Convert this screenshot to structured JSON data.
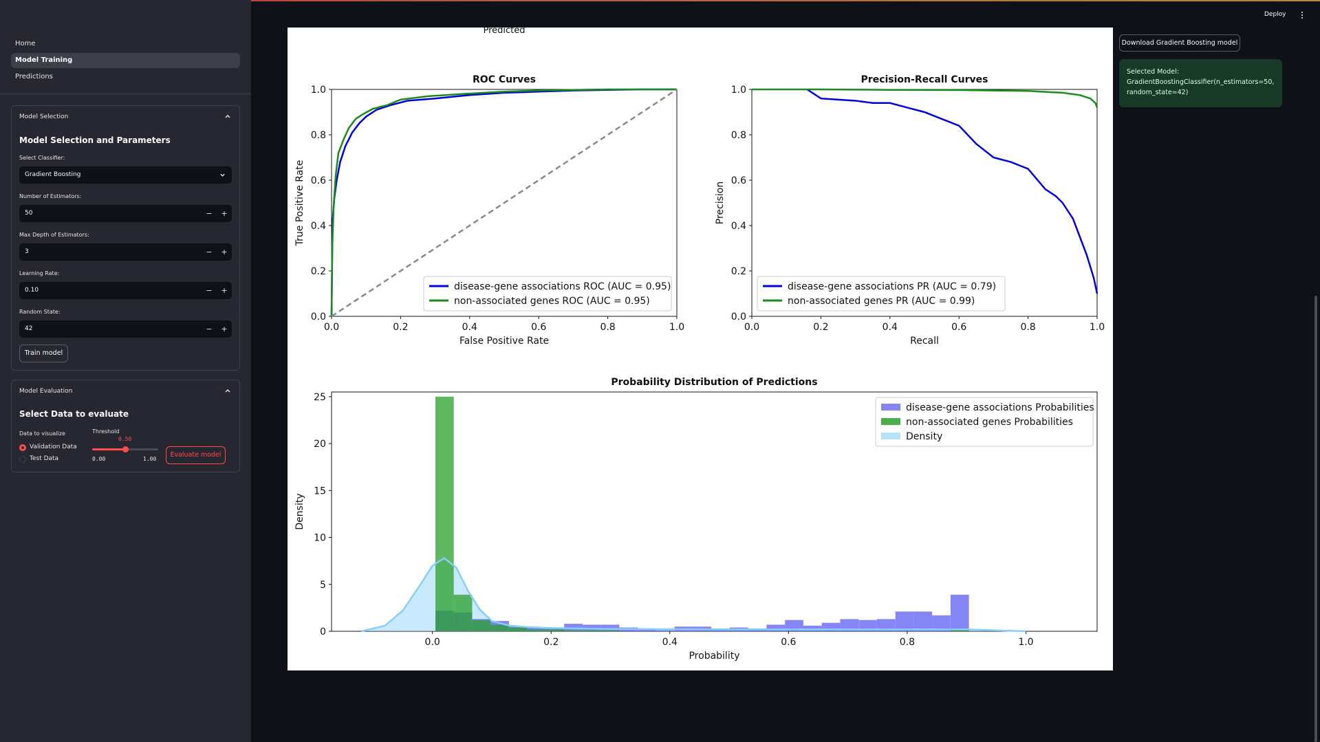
{
  "sidebar": {
    "nav": [
      "Home",
      "Model Training",
      "Predictions"
    ],
    "active_nav": "Model Training",
    "model_selection": {
      "title": "Model Selection",
      "heading": "Model Selection and Parameters",
      "classifier_label": "Select Classifier:",
      "classifier_value": "Gradient Boosting",
      "fields": [
        {
          "label": "Number of Estimators:",
          "value": "50"
        },
        {
          "label": "Max Depth of Estimators:",
          "value": "3"
        },
        {
          "label": "Learning Rate:",
          "value": "0.10"
        },
        {
          "label": "Random State:",
          "value": "42"
        }
      ],
      "stepper_minus": "−",
      "stepper_plus": "+",
      "train_button": "Train model"
    },
    "model_evaluation": {
      "title": "Model Evaluation",
      "heading": "Select Data to evaluate",
      "data_label": "Data to visualize",
      "options": [
        "Validation Data",
        "Test Data"
      ],
      "selected_option": "Validation Data",
      "threshold_label": "Threshold",
      "threshold_value": "0.50",
      "threshold_fraction": 0.5,
      "threshold_min": "0.00",
      "threshold_max": "1.00",
      "evaluate_button": "Evaluate model"
    }
  },
  "header": {
    "deploy": "Deploy"
  },
  "right_panel": {
    "download_button": "Download Gradient Boosting model",
    "selected_model_label": "Selected Model:",
    "selected_model_value": "GradientBoostingClassifier(n_estimators=50, random_state=42)"
  },
  "colors": {
    "accent": "#ff4b4b",
    "success_bg": "#173928",
    "blue_series": "#0000dd",
    "green_series": "#1a8a1a",
    "density": "#87cefa"
  },
  "figure": {
    "cut_label": "Predicted"
  },
  "chart_data": [
    {
      "type": "line",
      "title": "ROC Curves",
      "xlabel": "False Positive Rate",
      "ylabel": "True Positive Rate",
      "xlim": [
        0,
        1
      ],
      "ylim": [
        0,
        1
      ],
      "xticks": [
        "0.0",
        "0.2",
        "0.4",
        "0.6",
        "0.8",
        "1.0"
      ],
      "yticks": [
        "0.0",
        "0.2",
        "0.4",
        "0.6",
        "0.8",
        "1.0"
      ],
      "legend_position": "lower-right",
      "series": [
        {
          "name": "disease-gene associations ROC (AUC = 0.95)",
          "color": "#0000dd",
          "x": [
            0,
            0.003,
            0.008,
            0.015,
            0.025,
            0.04,
            0.06,
            0.08,
            0.1,
            0.13,
            0.17,
            0.22,
            0.3,
            0.4,
            0.5,
            0.6,
            0.7,
            0.8,
            0.9,
            1.0
          ],
          "y": [
            0,
            0.42,
            0.52,
            0.6,
            0.68,
            0.75,
            0.81,
            0.85,
            0.88,
            0.91,
            0.93,
            0.95,
            0.96,
            0.975,
            0.985,
            0.99,
            0.995,
            0.998,
            1.0,
            1.0
          ]
        },
        {
          "name": "non-associated genes ROC (AUC = 0.95)",
          "color": "#1a8a1a",
          "x": [
            0,
            0.002,
            0.006,
            0.012,
            0.02,
            0.035,
            0.05,
            0.07,
            0.09,
            0.12,
            0.16,
            0.2,
            0.28,
            0.38,
            0.5,
            0.6,
            0.7,
            0.8,
            0.9,
            1.0
          ],
          "y": [
            0,
            0.3,
            0.48,
            0.62,
            0.72,
            0.78,
            0.83,
            0.87,
            0.89,
            0.915,
            0.93,
            0.955,
            0.97,
            0.98,
            0.99,
            0.995,
            0.998,
            1.0,
            1.0,
            1.0
          ]
        },
        {
          "name": "",
          "color": "#888888",
          "dashed": true,
          "x": [
            0,
            1
          ],
          "y": [
            0,
            1
          ]
        }
      ]
    },
    {
      "type": "line",
      "title": "Precision-Recall Curves",
      "xlabel": "Recall",
      "ylabel": "Precision",
      "xlim": [
        0,
        1
      ],
      "ylim": [
        0,
        1
      ],
      "xticks": [
        "0.0",
        "0.2",
        "0.4",
        "0.6",
        "0.8",
        "1.0"
      ],
      "yticks": [
        "0.0",
        "0.2",
        "0.4",
        "0.6",
        "0.8",
        "1.0"
      ],
      "legend_position": "lower-left",
      "series": [
        {
          "name": "disease-gene associations PR (AUC = 0.79)",
          "color": "#0000dd",
          "x": [
            0.16,
            0.18,
            0.2,
            0.25,
            0.3,
            0.35,
            0.4,
            0.45,
            0.5,
            0.55,
            0.6,
            0.65,
            0.7,
            0.75,
            0.8,
            0.85,
            0.88,
            0.9,
            0.93,
            0.95,
            0.97,
            0.99,
            1.0
          ],
          "y": [
            1.0,
            0.98,
            0.96,
            0.955,
            0.95,
            0.94,
            0.94,
            0.92,
            0.9,
            0.87,
            0.84,
            0.76,
            0.7,
            0.68,
            0.65,
            0.56,
            0.53,
            0.5,
            0.43,
            0.35,
            0.27,
            0.17,
            0.1
          ]
        },
        {
          "name": "non-associated genes PR (AUC = 0.99)",
          "color": "#1a8a1a",
          "x": [
            0,
            0.2,
            0.4,
            0.6,
            0.8,
            0.9,
            0.95,
            0.98,
            0.995,
            1.0
          ],
          "y": [
            1.0,
            1.0,
            0.998,
            0.997,
            0.993,
            0.985,
            0.975,
            0.96,
            0.94,
            0.92
          ]
        }
      ]
    },
    {
      "type": "bar",
      "title": "Probability Distribution of Predictions",
      "xlabel": "Probability",
      "ylabel": "Density",
      "xlim": [
        -0.17,
        1.12
      ],
      "ylim": [
        0,
        25.5
      ],
      "xticks": [
        "0.0",
        "0.2",
        "0.4",
        "0.6",
        "0.8",
        "1.0"
      ],
      "xtick_values": [
        0,
        0.2,
        0.4,
        0.6,
        0.8,
        1.0
      ],
      "yticks": [
        "0",
        "5",
        "10",
        "15",
        "20",
        "25"
      ],
      "ytick_values": [
        0,
        5,
        10,
        15,
        20,
        25
      ],
      "legend_position": "top-right",
      "bin_edges": [
        0.005,
        0.036,
        0.067,
        0.098,
        0.129,
        0.16,
        0.191,
        0.222,
        0.253,
        0.284,
        0.315,
        0.346,
        0.377,
        0.408,
        0.439,
        0.47,
        0.501,
        0.532,
        0.563,
        0.594,
        0.625,
        0.656,
        0.687,
        0.718,
        0.749,
        0.78,
        0.811,
        0.842,
        0.873,
        0.904,
        0.935
      ],
      "series": [
        {
          "name": "disease-gene associations Probabilities",
          "color": "#7070f5",
          "values": [
            2.2,
            2.0,
            1.3,
            1.1,
            0.5,
            0.4,
            0.4,
            0.8,
            0.7,
            0.7,
            0.4,
            0.3,
            0.1,
            0.5,
            0.5,
            0.3,
            0.4,
            0.3,
            0.7,
            1.2,
            0.6,
            0.9,
            1.3,
            1.2,
            1.3,
            2.1,
            2.1,
            1.7,
            3.9,
            0.0
          ]
        },
        {
          "name": "non-associated genes Probabilities",
          "color": "#2aa02a",
          "values": [
            25.0,
            3.9,
            1.2,
            0.7,
            0.4,
            0.2,
            0.2,
            0.1,
            0.1,
            0.1,
            0.0,
            0.0,
            0.0,
            0.0,
            0.0,
            0.0,
            0.0,
            0.0,
            0.0,
            0.0,
            0.0,
            0.0,
            0.0,
            0.0,
            0.0,
            0.0,
            0.0,
            0.0,
            0.2,
            0.0
          ]
        },
        {
          "name": "Density",
          "color": "#87cefa",
          "x": [
            -0.12,
            -0.08,
            -0.05,
            -0.02,
            0.0,
            0.02,
            0.04,
            0.06,
            0.08,
            0.1,
            0.13,
            0.16,
            0.2,
            0.3,
            0.5,
            0.7,
            0.9,
            1.0
          ],
          "y": [
            0,
            0.6,
            2.2,
            5.0,
            7.0,
            7.8,
            6.8,
            4.3,
            2.3,
            1.1,
            0.6,
            0.45,
            0.35,
            0.25,
            0.2,
            0.2,
            0.2,
            0
          ]
        }
      ]
    }
  ]
}
